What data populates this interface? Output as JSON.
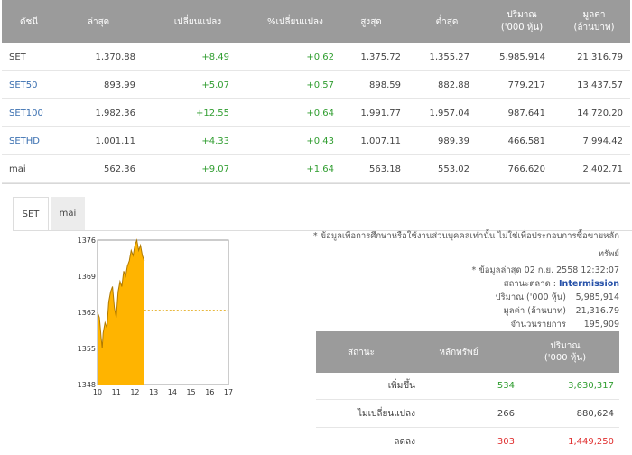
{
  "index_table": {
    "headers": {
      "index": "ดัชนี",
      "last": "ล่าสุด",
      "change": "เปลี่ยนแปลง",
      "pct_change": "%เปลี่ยนแปลง",
      "high": "สูงสุด",
      "low": "ต่ำสุด",
      "volume_line1": "ปริมาณ",
      "volume_line2": "('000 หุ้น)",
      "value_line1": "มูลค่า",
      "value_line2": "(ล้านบาท)"
    },
    "rows": [
      {
        "name": "SET",
        "last": "1,370.88",
        "change": "+8.49",
        "pct": "+0.62",
        "high": "1,375.72",
        "low": "1,355.27",
        "volume": "5,985,914",
        "value": "21,316.79"
      },
      {
        "name": "SET50",
        "last": "893.99",
        "change": "+5.07",
        "pct": "+0.57",
        "high": "898.59",
        "low": "882.88",
        "volume": "779,217",
        "value": "13,437.57"
      },
      {
        "name": "SET100",
        "last": "1,982.36",
        "change": "+12.55",
        "pct": "+0.64",
        "high": "1,991.77",
        "low": "1,957.04",
        "volume": "987,641",
        "value": "14,720.20"
      },
      {
        "name": "SETHD",
        "last": "1,001.11",
        "change": "+4.33",
        "pct": "+0.43",
        "high": "1,007.11",
        "low": "989.39",
        "volume": "466,581",
        "value": "7,994.42"
      },
      {
        "name": "mai",
        "last": "562.36",
        "change": "+9.07",
        "pct": "+1.64",
        "high": "563.18",
        "low": "553.02",
        "volume": "766,620",
        "value": "2,402.71"
      }
    ]
  },
  "tabs": [
    "SET",
    "mai"
  ],
  "notes": {
    "disclaimer_line1": "* ข้อมูลเพื่อการศึกษาหรือใช้งานส่วนบุคคลเท่านั้น ไม่ใช่เพื่อประกอบการซื้อขายหลัก",
    "disclaimer_line2": "ทรัพย์",
    "updated": "* ข้อมูลล่าสุด 02 ก.ย. 2558 12:32:07",
    "market_status_label": "สถานะตลาด :",
    "market_status_value": "Intermission",
    "volume_label": "ปริมาณ ('000 หุ้น)",
    "volume_value": "5,985,914",
    "value_label": "มูลค่า (ล้านบาท)",
    "value_value": "21,316.79",
    "trades_label": "จำนวนรายการ",
    "trades_value": "195,909"
  },
  "status_table": {
    "headers": {
      "status": "สถานะ",
      "securities": "หลักทรัพย์",
      "volume_line1": "ปริมาณ",
      "volume_line2": "('000 หุ้น)"
    },
    "rows": [
      {
        "status": "เพิ่มขึ้น",
        "securities": "534",
        "volume": "3,630,317",
        "color": "#2f9d2f"
      },
      {
        "status": "ไม่เปลี่ยนแปลง",
        "securities": "266",
        "volume": "880,624",
        "color": "#444444"
      },
      {
        "status": "ลดลง",
        "securities": "303",
        "volume": "1,449,250",
        "color": "#e03030"
      }
    ]
  },
  "chart_data": {
    "type": "area",
    "x_ticks": [
      "10",
      "11",
      "12",
      "13",
      "14",
      "15",
      "16",
      "17"
    ],
    "y_ticks": [
      "1348",
      "1355",
      "1362",
      "1369",
      "1376"
    ],
    "ylim": [
      1348,
      1376
    ],
    "xlim": [
      10,
      17
    ],
    "x": [
      10.0,
      10.1,
      10.2,
      10.25,
      10.3,
      10.4,
      10.5,
      10.6,
      10.7,
      10.8,
      10.9,
      11.0,
      11.1,
      11.2,
      11.3,
      11.4,
      11.5,
      11.6,
      11.7,
      11.8,
      11.9,
      12.0,
      12.1,
      12.2,
      12.3,
      12.4,
      12.5
    ],
    "values": [
      1362,
      1361,
      1357,
      1355,
      1358,
      1360,
      1359,
      1364,
      1366,
      1367,
      1363,
      1361,
      1366,
      1368,
      1367,
      1370,
      1369,
      1371,
      1372,
      1374,
      1373,
      1375,
      1376,
      1374,
      1375,
      1373,
      1372
    ],
    "reference_value": 1362.39,
    "fill_color": "#ffb400",
    "reference_color": "#e0a000"
  }
}
